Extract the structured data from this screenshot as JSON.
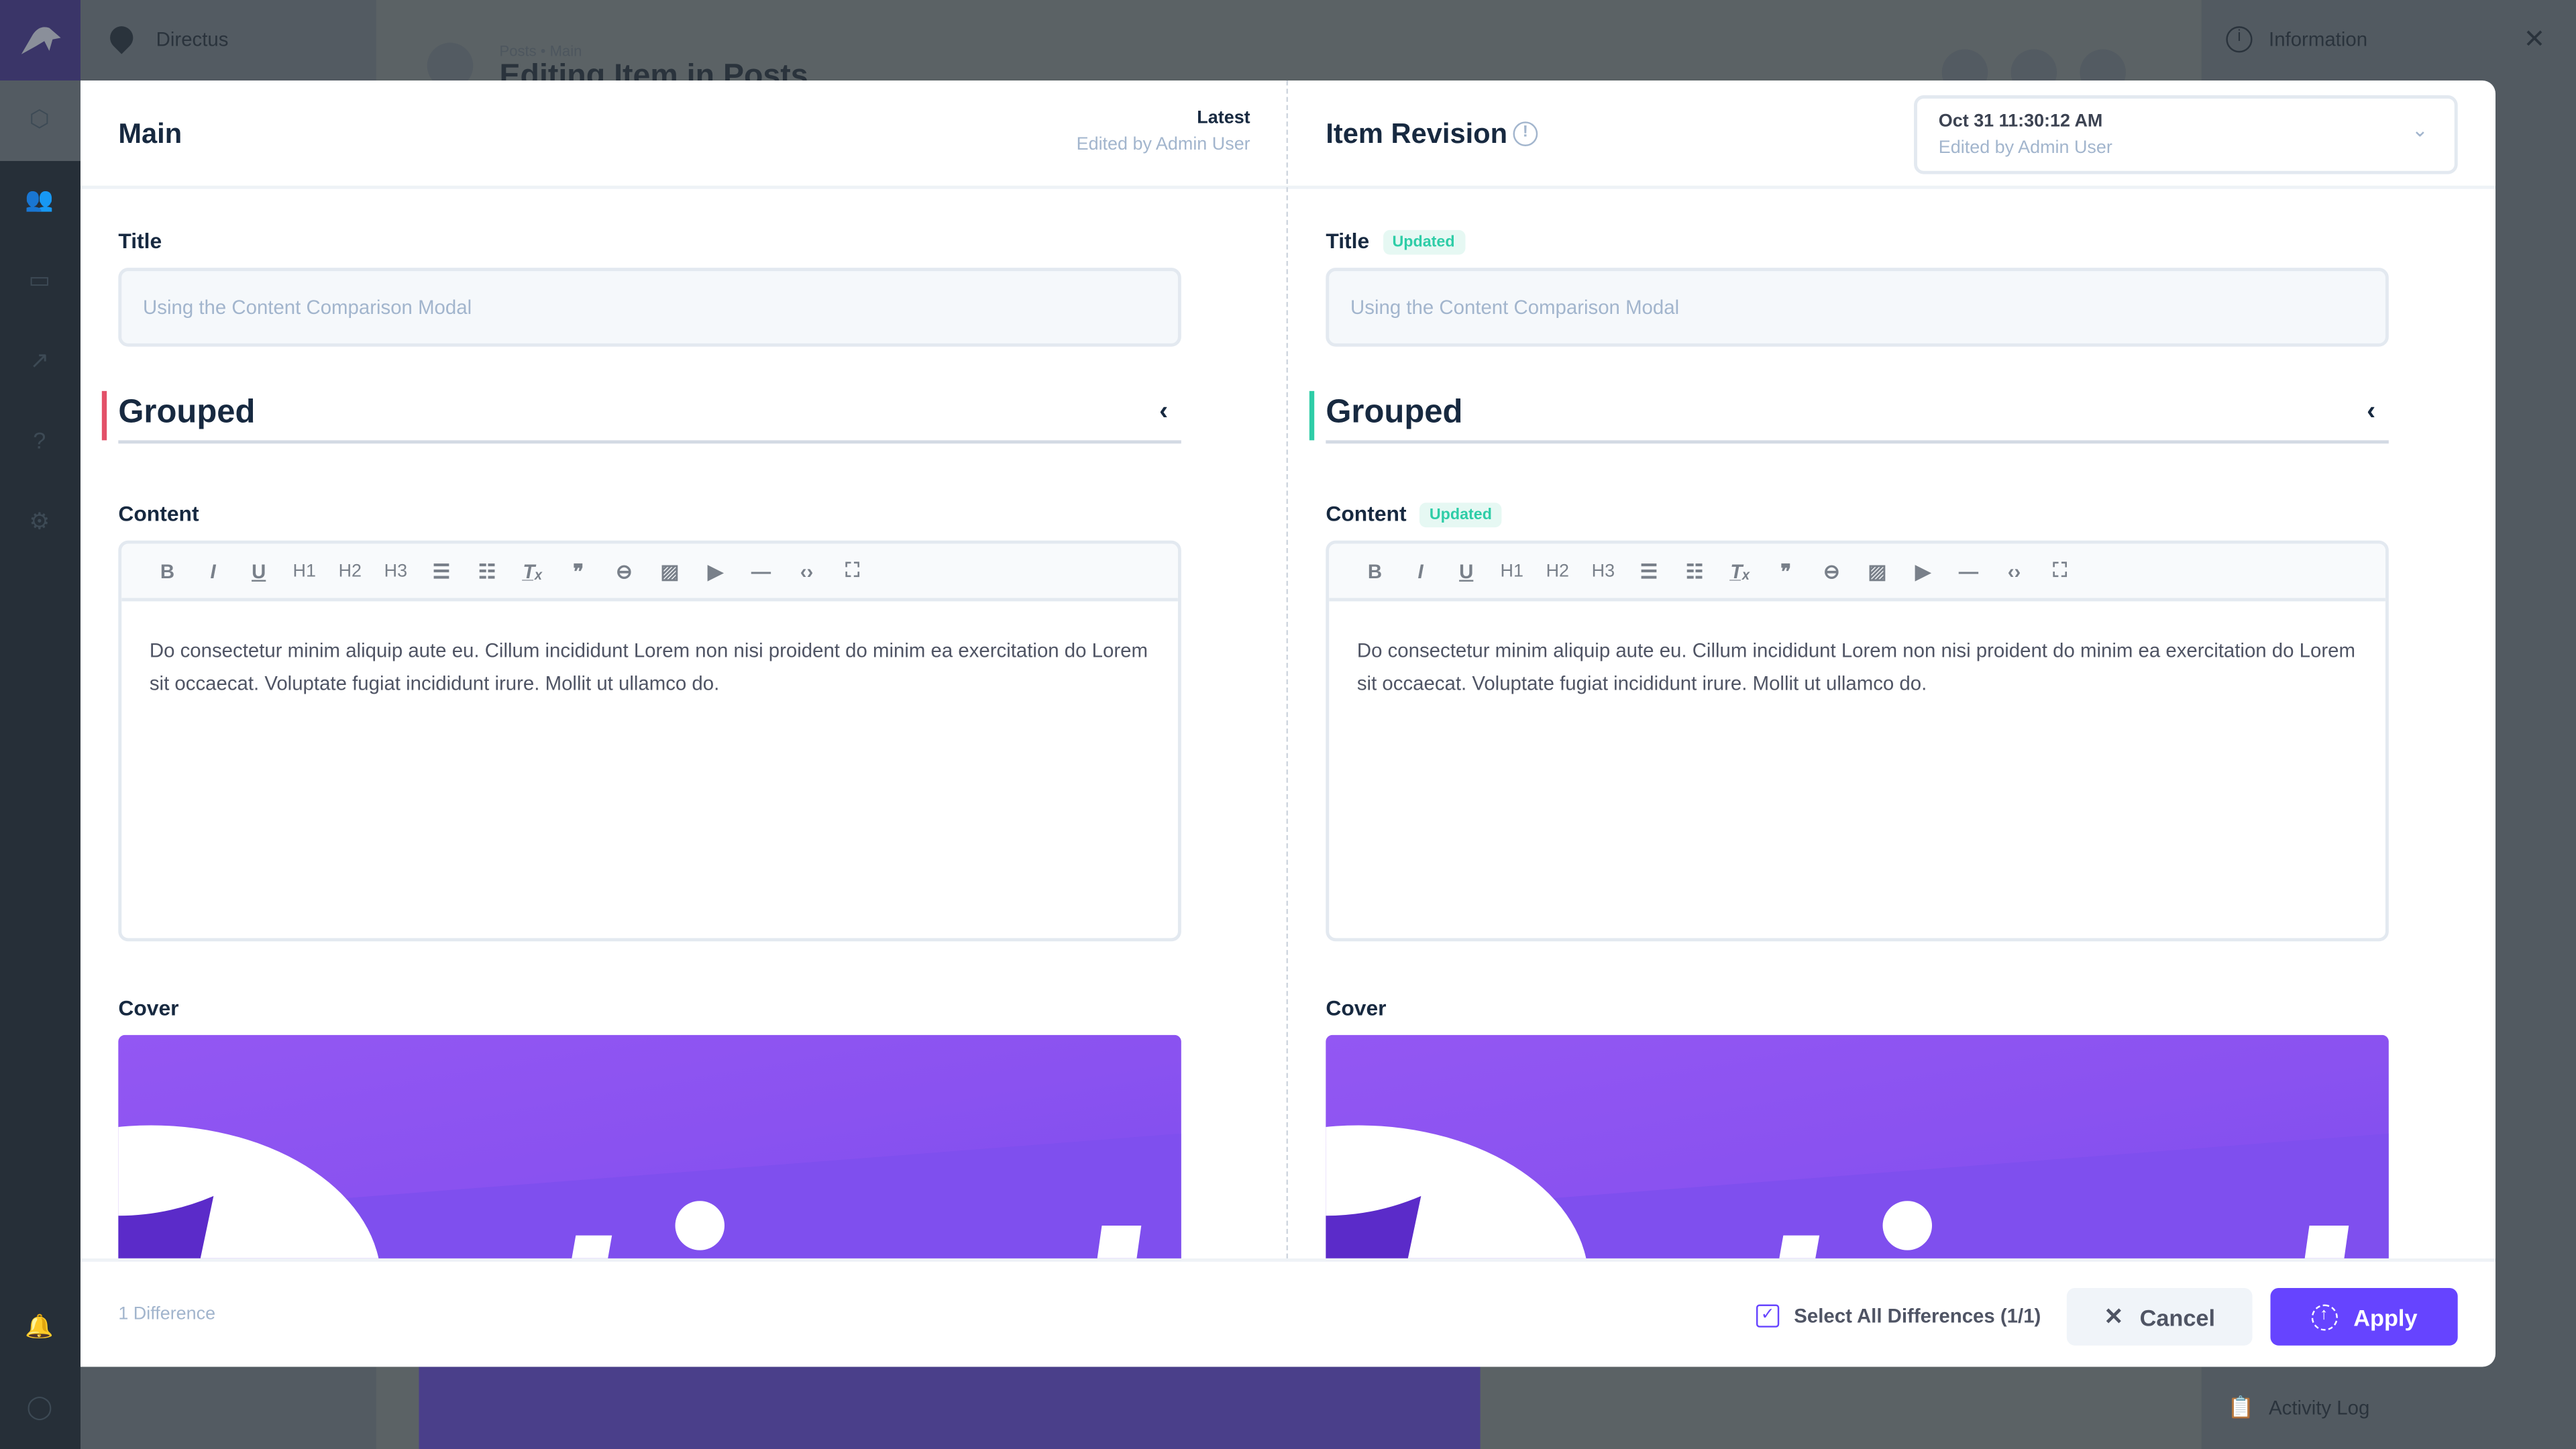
{
  "app": {
    "project_name": "Directus",
    "breadcrumb": "Posts • Main",
    "page_title": "Editing Item in Posts"
  },
  "info_sidebar": {
    "title": "Information",
    "activity_log": "Activity Log"
  },
  "left": {
    "title": "Main",
    "version": "Latest",
    "edited_by": "Edited by Admin User",
    "title_label": "Title",
    "title_value": "Using the Content Comparison Modal",
    "group_label": "Grouped",
    "content_label": "Content",
    "cover_label": "Cover",
    "content_text": "Do consectetur minim aliquip aute eu. Cillum incididunt Lorem non nisi proident do minim ea exercitation do Lorem sit occaecat. Voluptate fugiat incididunt irure. Mollit ut ullamco do.",
    "accent": "#e35169"
  },
  "right": {
    "title": "Item Revision",
    "revision_date": "Oct 31 11:30:12 AM",
    "edited_by": "Edited by Admin User",
    "title_label": "Title",
    "updated_badge": "Updated",
    "title_value": "Using the Content Comparison Modal",
    "group_label": "Grouped",
    "content_label": "Content",
    "content_badge": "Updated",
    "cover_label": "Cover",
    "content_text": "Do consectetur minim aliquip aute eu. Cillum incididunt Lorem non nisi proident do minim ea exercitation do Lorem sit occaecat. Voluptate fugiat incididunt irure. Mollit ut ullamco do.",
    "accent": "#2ecda7"
  },
  "toolbar": [
    "B",
    "I",
    "U",
    "H1",
    "H2",
    "H3",
    "ordered-list-icon",
    "bullet-list-icon",
    "clear-format-icon",
    "quote-icon",
    "link-icon",
    "image-icon",
    "media-icon",
    "hr-icon",
    "code-icon",
    "fullscreen-icon"
  ],
  "toolbar_labels": {
    "bold": "B",
    "italic": "I",
    "underline": "U",
    "h1": "H1",
    "h2": "H2",
    "h3": "H3"
  },
  "footer": {
    "differences": "1 Difference",
    "select_all": "Select All Differences (1/1)",
    "select_all_checked": true,
    "cancel": "Cancel",
    "apply": "Apply"
  },
  "colors": {
    "primary": "#6644ff",
    "updated": "#2ecda7",
    "removed": "#e35169"
  }
}
